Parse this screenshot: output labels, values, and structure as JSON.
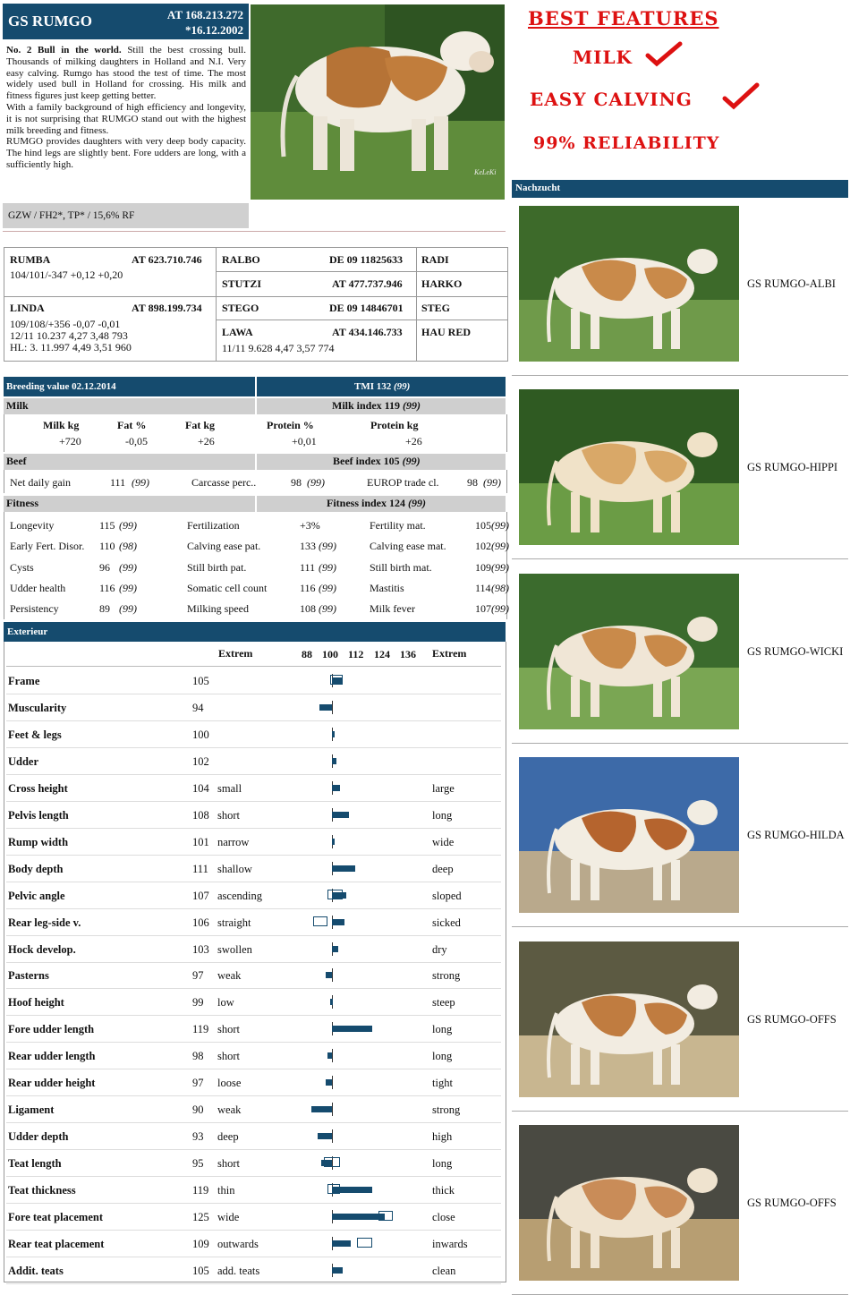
{
  "header": {
    "name": "GS RUMGO",
    "id": "AT 168.213.272",
    "dob": "*16.12.2002"
  },
  "description": {
    "p1_bold": "No. 2 Bull in the world.",
    "p1": " Still the best crossing bull. Thousands of milking daughters in Holland and N.I. Very easy calving. Rumgo has stood the test of time. The most widely used bull in Holland for crossing. His milk and fitness figures just keep getting better.",
    "p2": "With a family background of high efficiency and longevity, it is not surprising that RUMGO stand out with the highest milk breeding and fitness.",
    "p3": "RUMGO provides daughters with very deep body capacity. The hind legs are slightly bent. Fore udders are long, with a sufficiently high."
  },
  "gzw": "GZW / FH2*, TP* / 15,6% RF",
  "photo_credit": "KeLeKi",
  "features": {
    "f1": "BEST FEATURES",
    "f2": "MILK",
    "f3": "EASY CALVING",
    "f4": "99% RELIABILITY",
    "colors": {
      "red": "#dd1111"
    }
  },
  "pedigree": {
    "sire": {
      "name": "RUMBA",
      "id": "AT 623.710.746",
      "line1": "104/101/-347 +0,12 +0,20"
    },
    "dam": {
      "name": "LINDA",
      "id": "AT 898.199.734",
      "line1": "109/108/+356 -0,07 -0,01",
      "line2": "12/11 10.237 4,27 3,48 793",
      "line3": "HL: 3. 11.997 4,49 3,51 960"
    },
    "ss": {
      "name": "RALBO",
      "id": "DE 09 11825633"
    },
    "sd": {
      "name": "STUTZI",
      "id": "AT 477.737.946"
    },
    "ds": {
      "name": "STEGO",
      "id": "DE 09 14846701"
    },
    "dd": {
      "name": "LAWA",
      "id": "AT 434.146.733",
      "line1": "11/11 9.628 4,47 3,57 774"
    },
    "sss": "RADI",
    "sds": "HARKO",
    "dss": "STEG",
    "dds": "HAU RED"
  },
  "breeding": {
    "title": "Breeding value 02.12.2014",
    "tmi": "TMI 132",
    "tmi_rel": "(99)",
    "milk": {
      "label": "Milk",
      "index": "Milk index 119",
      "index_rel": "(99)",
      "headers": [
        "Milk kg",
        "Fat %",
        "Fat kg",
        "Protein %",
        "Protein kg"
      ],
      "values": [
        "+720",
        "-0,05",
        "+26",
        "+0,01",
        "+26"
      ]
    },
    "beef": {
      "label": "Beef",
      "index": "Beef index 105",
      "index_rel": "(99)",
      "items": [
        {
          "n": "Net daily gain",
          "v": "111",
          "r": "(99)"
        },
        {
          "n": "Carcasse perc..",
          "v": "98",
          "r": "(99)"
        },
        {
          "n": "EUROP trade cl.",
          "v": "98",
          "r": "(99)"
        }
      ]
    },
    "fitness": {
      "label": "Fitness",
      "index": "Fitness index 124",
      "index_rel": "(99)",
      "rows": [
        [
          {
            "n": "Longevity",
            "v": "115",
            "r": "(99)"
          },
          {
            "n": "Fertilization",
            "v": "+3%",
            "r": ""
          },
          {
            "n": "Fertility mat.",
            "v": "105",
            "r": "(99)"
          }
        ],
        [
          {
            "n": "Early Fert. Disor.",
            "v": "110",
            "r": "(98)"
          },
          {
            "n": "Calving ease pat.",
            "v": "133",
            "r": "(99)"
          },
          {
            "n": "Calving ease mat.",
            "v": "102",
            "r": "(99)"
          }
        ],
        [
          {
            "n": "Cysts",
            "v": "96",
            "r": "(99)"
          },
          {
            "n": "Still birth pat.",
            "v": "111",
            "r": "(99)"
          },
          {
            "n": "Still birth mat.",
            "v": "109",
            "r": "(99)"
          }
        ],
        [
          {
            "n": "Udder health",
            "v": "116",
            "r": "(99)"
          },
          {
            "n": "Somatic cell count",
            "v": "116",
            "r": "(99)"
          },
          {
            "n": "Mastitis",
            "v": "114",
            "r": "(98)"
          }
        ],
        [
          {
            "n": "Persistency",
            "v": "89",
            "r": "(99)"
          },
          {
            "n": "Milking speed",
            "v": "108",
            "r": "(99)"
          },
          {
            "n": "Milk fever",
            "v": "107",
            "r": "(99)"
          }
        ]
      ]
    }
  },
  "exterieur": {
    "title": "Exterieur",
    "extrem": "Extrem",
    "scale": [
      "88",
      "100",
      "112",
      "124",
      "136"
    ],
    "rows": [
      {
        "label": "Frame",
        "value": 105,
        "low": "",
        "high": "",
        "box": [
          99,
          105
        ]
      },
      {
        "label": "Muscularity",
        "value": 94,
        "low": "",
        "high": ""
      },
      {
        "label": "Feet & legs",
        "value": 100,
        "low": "",
        "high": ""
      },
      {
        "label": "Udder",
        "value": 102,
        "low": "",
        "high": ""
      },
      {
        "label": "Cross height",
        "value": 104,
        "low": "small",
        "high": "large"
      },
      {
        "label": "Pelvis length",
        "value": 108,
        "low": "short",
        "high": "long"
      },
      {
        "label": "Rump width",
        "value": 101,
        "low": "narrow",
        "high": "wide"
      },
      {
        "label": "Body depth",
        "value": 111,
        "low": "shallow",
        "high": "deep"
      },
      {
        "label": "Pelvic angle",
        "value": 107,
        "low": "ascending",
        "high": "sloped",
        "box": [
          98,
          105
        ]
      },
      {
        "label": "Rear leg-side v.",
        "value": 106,
        "low": "straight",
        "high": "sicked",
        "box": [
          91,
          98
        ]
      },
      {
        "label": "Hock develop.",
        "value": 103,
        "low": "swollen",
        "high": "dry"
      },
      {
        "label": "Pasterns",
        "value": 97,
        "low": "weak",
        "high": "strong"
      },
      {
        "label": "Hoof height",
        "value": 99,
        "low": "low",
        "high": "steep"
      },
      {
        "label": "Fore udder length",
        "value": 119,
        "low": "short",
        "high": "long"
      },
      {
        "label": "Rear udder length",
        "value": 98,
        "low": "short",
        "high": "long"
      },
      {
        "label": "Rear udder height",
        "value": 97,
        "low": "loose",
        "high": "tight"
      },
      {
        "label": "Ligament",
        "value": 90,
        "low": "weak",
        "high": "strong"
      },
      {
        "label": "Udder depth",
        "value": 93,
        "low": "deep",
        "high": "high"
      },
      {
        "label": "Teat length",
        "value": 95,
        "low": "short",
        "high": "long",
        "box": [
          96,
          104
        ]
      },
      {
        "label": "Teat thickness",
        "value": 119,
        "low": "thin",
        "high": "thick",
        "box": [
          98,
          104
        ]
      },
      {
        "label": "Fore teat placement",
        "value": 125,
        "low": "wide",
        "high": "close",
        "box": [
          122,
          129
        ]
      },
      {
        "label": "Rear teat placement",
        "value": 109,
        "low": "outwards",
        "high": "inwards",
        "box": [
          112,
          119
        ]
      },
      {
        "label": "Addit. teats",
        "value": 105,
        "low": "add. teats",
        "high": "clean"
      }
    ]
  },
  "offspring": {
    "title": "Nachzucht",
    "items": [
      "GS RUMGO-ALBI",
      "GS RUMGO-HIPPI",
      "GS RUMGO-WICKI",
      "GS RUMGO-HILDA",
      "GS RUMGO-OFFS",
      "GS RUMGO-OFFS"
    ]
  }
}
